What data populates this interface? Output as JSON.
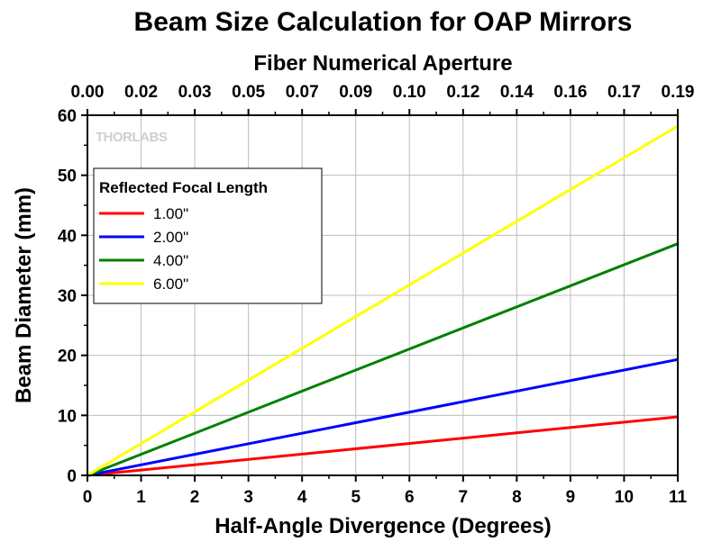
{
  "chart_data": {
    "type": "line",
    "title": "Beam Size Calculation for OAP Mirrors",
    "xlabel": "Half-Angle Divergence (Degrees)",
    "ylabel": "Beam Diameter (mm)",
    "x2label": "Fiber Numerical Aperture",
    "xlim": [
      0,
      11
    ],
    "ylim": [
      0,
      60
    ],
    "x_ticks": [
      0,
      1,
      2,
      3,
      4,
      5,
      6,
      7,
      8,
      9,
      10,
      11
    ],
    "y_ticks": [
      0,
      10,
      20,
      30,
      40,
      50,
      60
    ],
    "x2_tick_labels": [
      "0.00",
      "0.02",
      "0.03",
      "0.05",
      "0.07",
      "0.09",
      "0.10",
      "0.12",
      "0.14",
      "0.16",
      "0.17",
      "0.19"
    ],
    "grid": true,
    "legend": {
      "title": "Reflected Focal Length",
      "placement": "top-left"
    },
    "series": [
      {
        "name": "1.00\"",
        "color": "#ff0000",
        "x": [
          0,
          11
        ],
        "y": [
          0,
          9.75
        ]
      },
      {
        "name": "2.00\"",
        "color": "#0000ff",
        "x": [
          0,
          11
        ],
        "y": [
          0,
          19.3
        ]
      },
      {
        "name": "4.00\"",
        "color": "#008000",
        "x": [
          0,
          11
        ],
        "y": [
          0,
          38.6
        ]
      },
      {
        "name": "6.00\"",
        "color": "#ffff00",
        "x": [
          0,
          11
        ],
        "y": [
          0,
          58.2
        ]
      }
    ]
  },
  "watermark": {
    "text": "THORLABS"
  }
}
